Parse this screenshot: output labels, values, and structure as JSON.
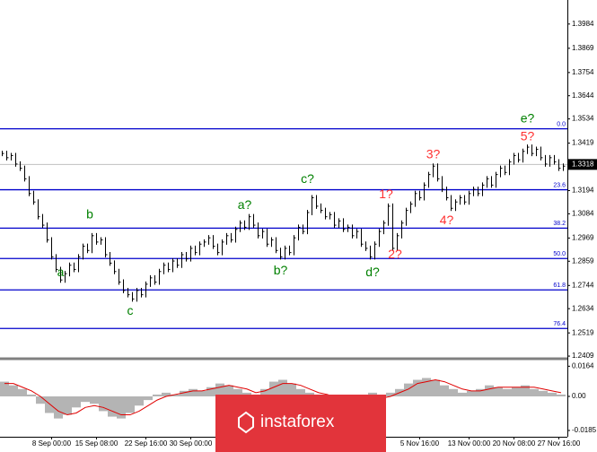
{
  "watermark": "instaforex",
  "chart_data": [
    {
      "type": "ohlc",
      "color": "#000000",
      "ylim": [
        1.2405,
        1.4098
      ],
      "yticks": [
        1.3984,
        1.3869,
        1.3754,
        1.3644,
        1.3534,
        1.3419,
        1.3194,
        1.3084,
        1.2969,
        1.2859,
        1.2744,
        1.2634,
        1.2519,
        1.2409
      ],
      "xticks": [
        {
          "value": 11,
          "label": "8 Sep 00:00"
        },
        {
          "value": 21,
          "label": "15 Sep 08:00"
        },
        {
          "value": 32,
          "label": "22 Sep 16:00"
        },
        {
          "value": 42,
          "label": "30 Sep 00:00"
        },
        {
          "value": 93,
          "label": "5 Nov 16:00"
        },
        {
          "value": 104,
          "label": "13 Nov 00:00"
        },
        {
          "value": 114,
          "label": "20 Nov 08:00"
        },
        {
          "value": 124,
          "label": "27 Nov 16:00"
        }
      ],
      "values": [
        1.337,
        1.335,
        1.336,
        1.332,
        1.33,
        1.325,
        1.318,
        1.314,
        1.307,
        1.303,
        1.296,
        1.288,
        1.282,
        1.277,
        1.28,
        1.284,
        1.282,
        1.288,
        1.293,
        1.291,
        1.298,
        1.295,
        1.296,
        1.289,
        1.285,
        1.281,
        1.276,
        1.272,
        1.27,
        1.268,
        1.272,
        1.27,
        1.275,
        1.278,
        1.276,
        1.281,
        1.284,
        1.282,
        1.286,
        1.284,
        1.289,
        1.287,
        1.292,
        1.29,
        1.294,
        1.295,
        1.297,
        1.293,
        1.29,
        1.295,
        1.298,
        1.296,
        1.301,
        1.304,
        1.302,
        1.307,
        1.303,
        1.298,
        1.3,
        1.294,
        1.296,
        1.291,
        1.288,
        1.292,
        1.29,
        1.297,
        1.302,
        1.3,
        1.309,
        1.316,
        1.312,
        1.31,
        1.307,
        1.308,
        1.303,
        1.305,
        1.301,
        1.302,
        1.298,
        1.3,
        1.294,
        1.292,
        1.288,
        1.294,
        1.3,
        1.304,
        1.312,
        1.292,
        1.298,
        1.304,
        1.31,
        1.313,
        1.318,
        1.316,
        1.322,
        1.327,
        1.331,
        1.325,
        1.32,
        1.316,
        1.311,
        1.314,
        1.316,
        1.314,
        1.318,
        1.32,
        1.318,
        1.322,
        1.325,
        1.322,
        1.327,
        1.33,
        1.328,
        1.333,
        1.336,
        1.334,
        1.338,
        1.34,
        1.337,
        1.339,
        1.335,
        1.332,
        1.335,
        1.333,
        1.33,
        1.331
      ],
      "last_price": 1.3318,
      "fib_color": "#0000cc",
      "fib_levels": [
        {
          "value": 1.3487,
          "label": "0.0"
        },
        {
          "value": 1.3198,
          "label": "23.6"
        },
        {
          "value": 1.3016,
          "label": "38.2"
        },
        {
          "value": 1.2872,
          "label": "50.0"
        },
        {
          "value": 1.2723,
          "label": "61.8"
        },
        {
          "value": 1.254,
          "label": "76.4"
        }
      ],
      "annotations": [
        {
          "text": "a",
          "bar": 13,
          "price": 1.2804,
          "color": "#008000"
        },
        {
          "text": "b",
          "bar": 19.5,
          "price": 1.3079,
          "color": "#008000"
        },
        {
          "text": "c",
          "bar": 28.5,
          "price": 1.2621,
          "color": "#008000"
        },
        {
          "text": "a?",
          "bar": 54,
          "price": 1.3122,
          "color": "#008000"
        },
        {
          "text": "b?",
          "bar": 62,
          "price": 1.2812,
          "color": "#008000"
        },
        {
          "text": "c?",
          "bar": 68,
          "price": 1.3245,
          "color": "#008000"
        },
        {
          "text": "d?",
          "bar": 82.5,
          "price": 1.2804,
          "color": "#008000"
        },
        {
          "text": "e?",
          "bar": 117,
          "price": 1.3534,
          "color": "#008000"
        },
        {
          "text": "1?",
          "bar": 85.5,
          "price": 1.3173,
          "color": "#ff3030"
        },
        {
          "text": "2?",
          "bar": 87.5,
          "price": 1.2889,
          "color": "#ff3030"
        },
        {
          "text": "3?",
          "bar": 96,
          "price": 1.3364,
          "color": "#ff3030"
        },
        {
          "text": "4?",
          "bar": 99,
          "price": 1.305,
          "color": "#ff3030"
        },
        {
          "text": "5?",
          "bar": 117,
          "price": 1.3449,
          "color": "#ff3030"
        }
      ]
    },
    {
      "type": "bar",
      "color": "#b4b4b4",
      "signal_color": "#e00000",
      "ylim": [
        -0.019,
        0.019
      ],
      "yticks": [
        0.0164,
        {
          "value": 0,
          "label": "0.00"
        },
        -0.0185
      ],
      "values": [
        0.008,
        0.006,
        0.004,
        0.001,
        -0.004,
        -0.009,
        -0.012,
        -0.01,
        -0.006,
        -0.003,
        -0.004,
        -0.008,
        -0.011,
        -0.012,
        -0.009,
        -0.005,
        -0.002,
        0.001,
        0.002,
        0.001,
        0.003,
        0.004,
        0.003,
        0.005,
        0.007,
        0.006,
        0.004,
        0.002,
        0.001,
        0.004,
        0.008,
        0.009,
        0.007,
        0.004,
        0.002,
        0.001,
        -0.001,
        -0.002,
        0.0,
        -0.001,
        -0.003,
        0.002,
        -0.002,
        0.002,
        0.004,
        0.007,
        0.009,
        0.01,
        0.009,
        0.006,
        0.004,
        0.002,
        0.003,
        0.004,
        0.006,
        0.005,
        0.004,
        0.005,
        0.006,
        0.004,
        0.003,
        0.002,
        0.001
      ],
      "signal_values": [
        0.007,
        0.007,
        0.005,
        0.003,
        0.0,
        -0.004,
        -0.008,
        -0.01,
        -0.009,
        -0.006,
        -0.005,
        -0.006,
        -0.008,
        -0.01,
        -0.01,
        -0.008,
        -0.005,
        -0.002,
        0.0,
        0.001,
        0.002,
        0.003,
        0.003,
        0.004,
        0.005,
        0.006,
        0.005,
        0.004,
        0.002,
        0.003,
        0.005,
        0.007,
        0.007,
        0.006,
        0.004,
        0.002,
        0.001,
        -0.001,
        -0.001,
        -0.001,
        -0.002,
        0.0,
        -0.001,
        0.0,
        0.002,
        0.004,
        0.007,
        0.008,
        0.009,
        0.008,
        0.006,
        0.004,
        0.003,
        0.003,
        0.004,
        0.005,
        0.005,
        0.005,
        0.005,
        0.005,
        0.004,
        0.003,
        0.002
      ]
    }
  ]
}
